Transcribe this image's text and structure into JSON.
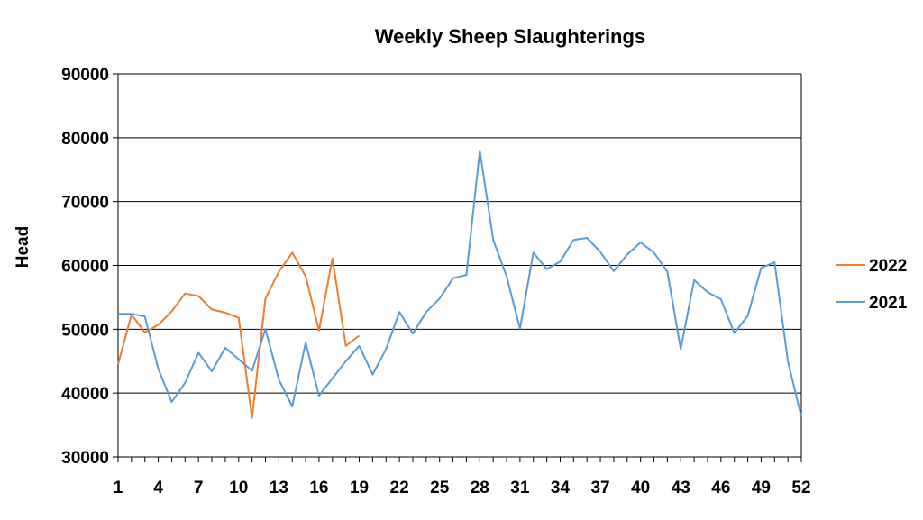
{
  "chart_data": {
    "type": "line",
    "title": "Weekly Sheep Slaughterings",
    "xlabel": "",
    "ylabel": "Head",
    "xlim": [
      1,
      52
    ],
    "ylim": [
      30000,
      90000
    ],
    "y_ticks": [
      30000,
      40000,
      50000,
      60000,
      70000,
      80000,
      90000
    ],
    "x_tick_labels": [
      1,
      4,
      7,
      10,
      13,
      16,
      19,
      22,
      25,
      28,
      31,
      34,
      37,
      40,
      43,
      46,
      49,
      52
    ],
    "grid": "horizontal",
    "legend_position": "right",
    "series": [
      {
        "name": "2022",
        "color": "#ED7D31",
        "x": [
          1,
          2,
          3,
          4,
          5,
          6,
          7,
          8,
          9,
          10,
          11,
          12,
          13,
          14,
          15,
          16,
          17,
          18,
          19
        ],
        "values": [
          44500,
          52300,
          49500,
          50700,
          52800,
          55600,
          55200,
          53100,
          52600,
          51800,
          36100,
          54800,
          59000,
          62000,
          58300,
          49800,
          61100,
          47400,
          49000
        ]
      },
      {
        "name": "2021",
        "color": "#5B9BD5",
        "x": [
          1,
          2,
          3,
          4,
          5,
          6,
          7,
          8,
          9,
          10,
          11,
          12,
          13,
          14,
          15,
          16,
          17,
          18,
          19,
          20,
          21,
          22,
          23,
          24,
          25,
          26,
          27,
          28,
          29,
          30,
          31,
          32,
          33,
          34,
          35,
          36,
          37,
          38,
          39,
          40,
          41,
          42,
          43,
          44,
          45,
          46,
          47,
          48,
          49,
          50,
          51,
          52
        ],
        "values": [
          52400,
          52400,
          52000,
          43800,
          38600,
          41600,
          46300,
          43400,
          47100,
          45300,
          43500,
          50000,
          42100,
          37900,
          47900,
          39600,
          42300,
          45000,
          47400,
          42900,
          46900,
          52700,
          49300,
          52700,
          54800,
          58000,
          58500,
          78000,
          64000,
          58300,
          50100,
          62000,
          59400,
          60600,
          64000,
          64300,
          62100,
          59100,
          61700,
          63600,
          62000,
          59000,
          46900,
          57700,
          55800,
          54700,
          49400,
          52100,
          59600,
          60500,
          45000,
          36300
        ]
      }
    ]
  }
}
